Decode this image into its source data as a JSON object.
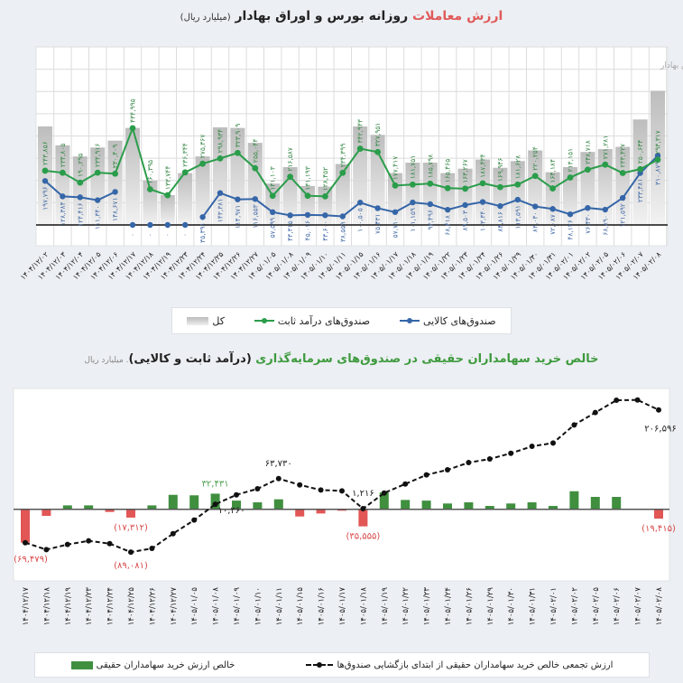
{
  "top_title": {
    "accent": "ارزش معاملات",
    "main": " روزانه بورس و اوراق بهادار ",
    "unit": "(میلیارد ریال)"
  },
  "bottom_title": {
    "accent": "خالص خرید سهامداران حقیقی در صندوق‌های سرمایه‌گذاری ",
    "main": "(درآمد ثابت و کالایی)",
    "unit": ". میلیارد ریال"
  },
  "colors": {
    "fixed_income": "#2a9d4a",
    "commodity": "#3566a8",
    "total": "#c9c9c9",
    "positive_bar": "#3f8f3f",
    "negative_bar": "#e25656",
    "cumulative_line": "#111111"
  },
  "chart_data": [
    {
      "type": "bar+line",
      "title": "ارزش معاملات روزانه بورس و اوراق بهادار (میلیارد ریال)",
      "source": "مأخذ: سازمان بورس و اوراق بهادار",
      "ylim": [
        0,
        800000
      ],
      "grid": true,
      "legend_position": "bottom",
      "categories": [
        "۱۴۰۴/۱۲/۰۲",
        "۱۴۰۴/۱۲/۰۳",
        "۱۴۰۴/۱۲/۰۴",
        "۱۴۰۴/۱۲/۰۵",
        "۱۴۰۴/۱۲/۰۶",
        "۱۴۰۴/۱۲/۱۷",
        "۱۴۰۴/۱۲/۱۸",
        "۱۴۰۴/۱۲/۱۹",
        "۱۴۰۴/۱۲/۲۳",
        "۱۴۰۴/۱۲/۲۴",
        "۱۴۰۴/۱۲/۲۵",
        "۱۴۰۴/۱۲/۲۶",
        "۱۴۰۴/۱۲/۲۷",
        "۱۴۰۵/۰۱/۰۵",
        "۱۴۰۵/۰۱/۰۸",
        "۱۴۰۵/۰۱/۰۹",
        "۱۴۰۵/۰۱/۱۰",
        "۱۴۰۵/۰۱/۱۱",
        "۱۴۰۵/۰۱/۱۵",
        "۱۴۰۵/۰۱/۱۶",
        "۱۴۰۵/۰۱/۱۷",
        "۱۴۰۵/۰۱/۱۸",
        "۱۴۰۵/۰۱/۱۹",
        "۱۴۰۵/۰۱/۲۲",
        "۱۴۰۵/۰۱/۲۳",
        "۱۴۰۵/۰۱/۲۴",
        "۱۴۰۵/۰۱/۲۶",
        "۱۴۰۵/۰۱/۲۹",
        "۱۴۰۵/۰۱/۳۰",
        "۱۴۰۵/۰۱/۳۱",
        "۱۴۰۵/۰۲/۰۱",
        "۱۴۰۵/۰۲/۰۲",
        "۱۴۰۵/۰۲/۰۵",
        "۱۴۰۵/۰۲/۰۶",
        "۱۴۰۵/۰۲/۰۷",
        "۱۴۰۵/۰۲/۰۸"
      ],
      "series": [
        {
          "name": "کل",
          "kind": "bar",
          "values": [
            443000,
            358000,
            308000,
            348000,
            379000,
            436000,
            199000,
            134000,
            233000,
            308000,
            439000,
            436000,
            369000,
            186000,
            260000,
            175000,
            172000,
            274000,
            443000,
            405000,
            233000,
            280000,
            280000,
            233000,
            253000,
            294000,
            257000,
            287000,
            335000,
            237000,
            260000,
            328000,
            341000,
            351000,
            474000,
            603000
          ]
        },
        {
          "name": "صندوق‌های درآمد ثابت",
          "kind": "line",
          "values": [
            243856,
            234805,
            190295,
            234916,
            230409,
            434995,
            160395,
            133744,
            236344,
            275367,
            298934,
            323909,
            255044,
            131103,
            216587,
            131193,
            128452,
            234399,
            342943,
            327951,
            177417,
            181751,
            185798,
            165465,
            163267,
            187434,
            169946,
            181628,
            220254,
            164184,
            213151,
            248718,
            271281,
            233427,
            250634,
            293317
          ]
        },
        {
          "name": "صندوق‌های کالایی",
          "kind": "line",
          "values": [
            197796,
            128384,
            124416,
            111340,
            148671,
            0,
            0,
            0,
            0,
            35391,
            143381,
            114971,
            116553,
            57599,
            43315,
            45016,
            43600,
            38559,
            100505,
            75431,
            57710,
            101159,
            93496,
            68418,
            89503,
            103340,
            84816,
            113591,
            83030,
            72087,
            48126,
            76430,
            68890,
            121592,
            233481,
            310879
          ]
        }
      ]
    },
    {
      "type": "bar+line",
      "title": "خالص خرید سهامداران حقیقی در صندوق‌های سرمایه‌گذاری (درآمد ثابت و کالایی). میلیارد ریال",
      "grid": false,
      "legend_position": "bottom",
      "categories": [
        "۱۴۰۴/۱۲/۱۷",
        "۱۴۰۴/۱۲/۱۸",
        "۱۴۰۴/۱۲/۱۹",
        "۱۴۰۴/۱۲/۲۳",
        "۱۴۰۴/۱۲/۲۴",
        "۱۴۰۴/۱۲/۲۵",
        "۱۴۰۴/۱۲/۲۶",
        "۱۴۰۴/۱۲/۲۷",
        "۱۴۰۵/۰۱/۰۵",
        "۱۴۰۵/۰۱/۰۸",
        "۱۴۰۵/۰۱/۰۹",
        "۱۴۰۵/۰۱/۱۰",
        "۱۴۰۵/۰۱/۱۱",
        "۱۴۰۵/۰۱/۱۵",
        "۱۴۰۵/۰۱/۱۶",
        "۱۴۰۵/۰۱/۱۷",
        "۱۴۰۵/۰۱/۱۸",
        "۱۴۰۵/۰۱/۱۹",
        "۱۴۰۵/۰۱/۲۲",
        "۱۴۰۵/۰۱/۲۳",
        "۱۴۰۵/۰۱/۲۴",
        "۱۴۰۵/۰۱/۲۶",
        "۱۴۰۵/۰۱/۲۹",
        "۱۴۰۵/۰۱/۳۰",
        "۱۴۰۵/۰۱/۳۱",
        "۱۴۰۵/۰۲/۰۱",
        "۱۴۰۵/۰۲/۰۲",
        "۱۴۰۵/۰۲/۰۵",
        "۱۴۰۵/۰۲/۰۶",
        "۱۴۰۵/۰۲/۰۷",
        "۱۴۰۵/۰۲/۰۸"
      ],
      "series": [
        {
          "name": "خالص ارزش خرید سهامداران حقیقی",
          "kind": "bar",
          "values": [
            -69479,
            -13800,
            8100,
            8100,
            -5600,
            -17312,
            8100,
            30000,
            29000,
            32431,
            18000,
            14400,
            20700,
            -15000,
            -8800,
            -3000,
            -35555,
            35000,
            19400,
            18000,
            12000,
            14400,
            6900,
            12000,
            14400,
            6900,
            37500,
            25700,
            25700,
            0,
            -19415
          ]
        },
        {
          "name": "ارزش تجمعی خالص خرید سهامداران حقیقی از ابتدای بازگشایی صندوق‌ها",
          "kind": "line",
          "values": [
            -69479,
            -83900,
            -73200,
            -65700,
            -71400,
            -89081,
            -81400,
            -50700,
            -22500,
            10360,
            30000,
            42600,
            63730,
            50700,
            40000,
            38200,
            1216,
            33800,
            52600,
            71400,
            82000,
            97000,
            104500,
            116400,
            130800,
            137700,
            175300,
            201000,
            226600,
            227200,
            206596
          ]
        }
      ],
      "bar_labels": [
        {
          "index": 0,
          "value": -69479
        },
        {
          "index": 5,
          "value": -17312
        },
        {
          "index": 9,
          "value": 32431
        },
        {
          "index": 16,
          "value": -35555
        },
        {
          "index": 30,
          "value": -19415
        }
      ],
      "line_labels": [
        {
          "index": 5,
          "value": -89081
        },
        {
          "index": 9,
          "value": 10360
        },
        {
          "index": 12,
          "value": 63730
        },
        {
          "index": 16,
          "value": 1216
        },
        {
          "index": 30,
          "value": 206596
        }
      ]
    }
  ],
  "legend_top": {
    "commodity": "صندوق‌های کالایی",
    "fixed_income": "صندوق‌های درآمد ثابت",
    "total": "کل"
  },
  "legend_bottom": {
    "cumulative": "ارزش تجمعی خالص خرید سهامداران حقیقی از ابتدای بازگشایی صندوق‌ها",
    "net": "خالص ارزش خرید سهامداران حقیقی"
  }
}
